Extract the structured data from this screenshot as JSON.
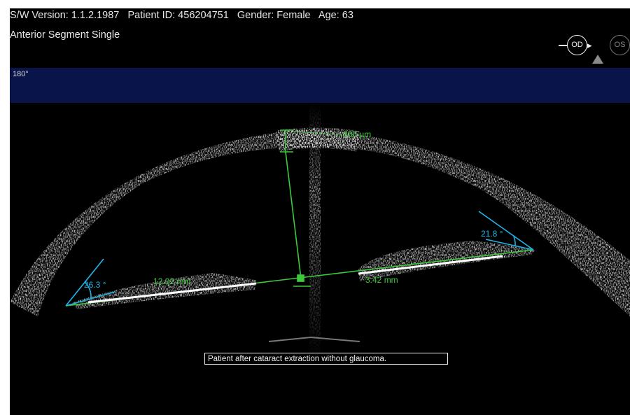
{
  "header": {
    "line1": "S/W Version: 1.1.2.1987   Patient ID: 456204751   Gender: Female   Age: 63",
    "line2": "Anterior Segment Single"
  },
  "eye_selector": {
    "od": "OD",
    "os": "OS",
    "selected": "OD"
  },
  "angle_band": {
    "label": "180°",
    "color": "#08144a"
  },
  "measurements": {
    "central_thickness": "560 µm",
    "left_angle": "26.3 °",
    "right_angle": "21.8 °",
    "left_distance": "12.02 mm",
    "right_distance": "3.42 mm"
  },
  "caption": "Patient after cataract extraction without glaucoma.",
  "colors": {
    "measure_line": "#3ec83e",
    "angle_line": "#1fb5e8",
    "background": "#000000"
  },
  "icons": [
    "warning-triangle-icon",
    "arrow-right-icon"
  ]
}
